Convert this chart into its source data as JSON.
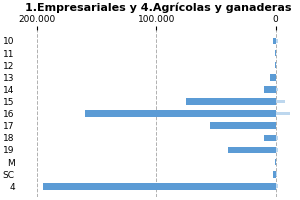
{
  "title": "1.Empresariales y 4.Agrícolas y ganaderas",
  "categories": [
    "10",
    "11",
    "12",
    "13",
    "14",
    "15",
    "16",
    "17",
    "18",
    "19",
    "M",
    "SC",
    "4"
  ],
  "series1_values": [
    -2000,
    -300,
    -800,
    -5000,
    -10000,
    -75000,
    -160000,
    -55000,
    -10000,
    -40000,
    -300,
    -2000,
    -195000
  ],
  "series2_values": [
    1500,
    500,
    500,
    500,
    2000,
    8000,
    12000,
    500,
    1500,
    1500,
    300,
    1000,
    1500
  ],
  "bar_color1": "#5b9bd5",
  "bar_color2": "#bdd7ee",
  "background_color": "#ffffff",
  "xlim": [
    -215000,
    18000
  ],
  "xticks": [
    -200000,
    -100000,
    0
  ],
  "xticklabels": [
    "200.000",
    "100.000",
    "0"
  ],
  "grid_color": "#b0b0b0",
  "title_fontsize": 8,
  "tick_fontsize": 6.5
}
